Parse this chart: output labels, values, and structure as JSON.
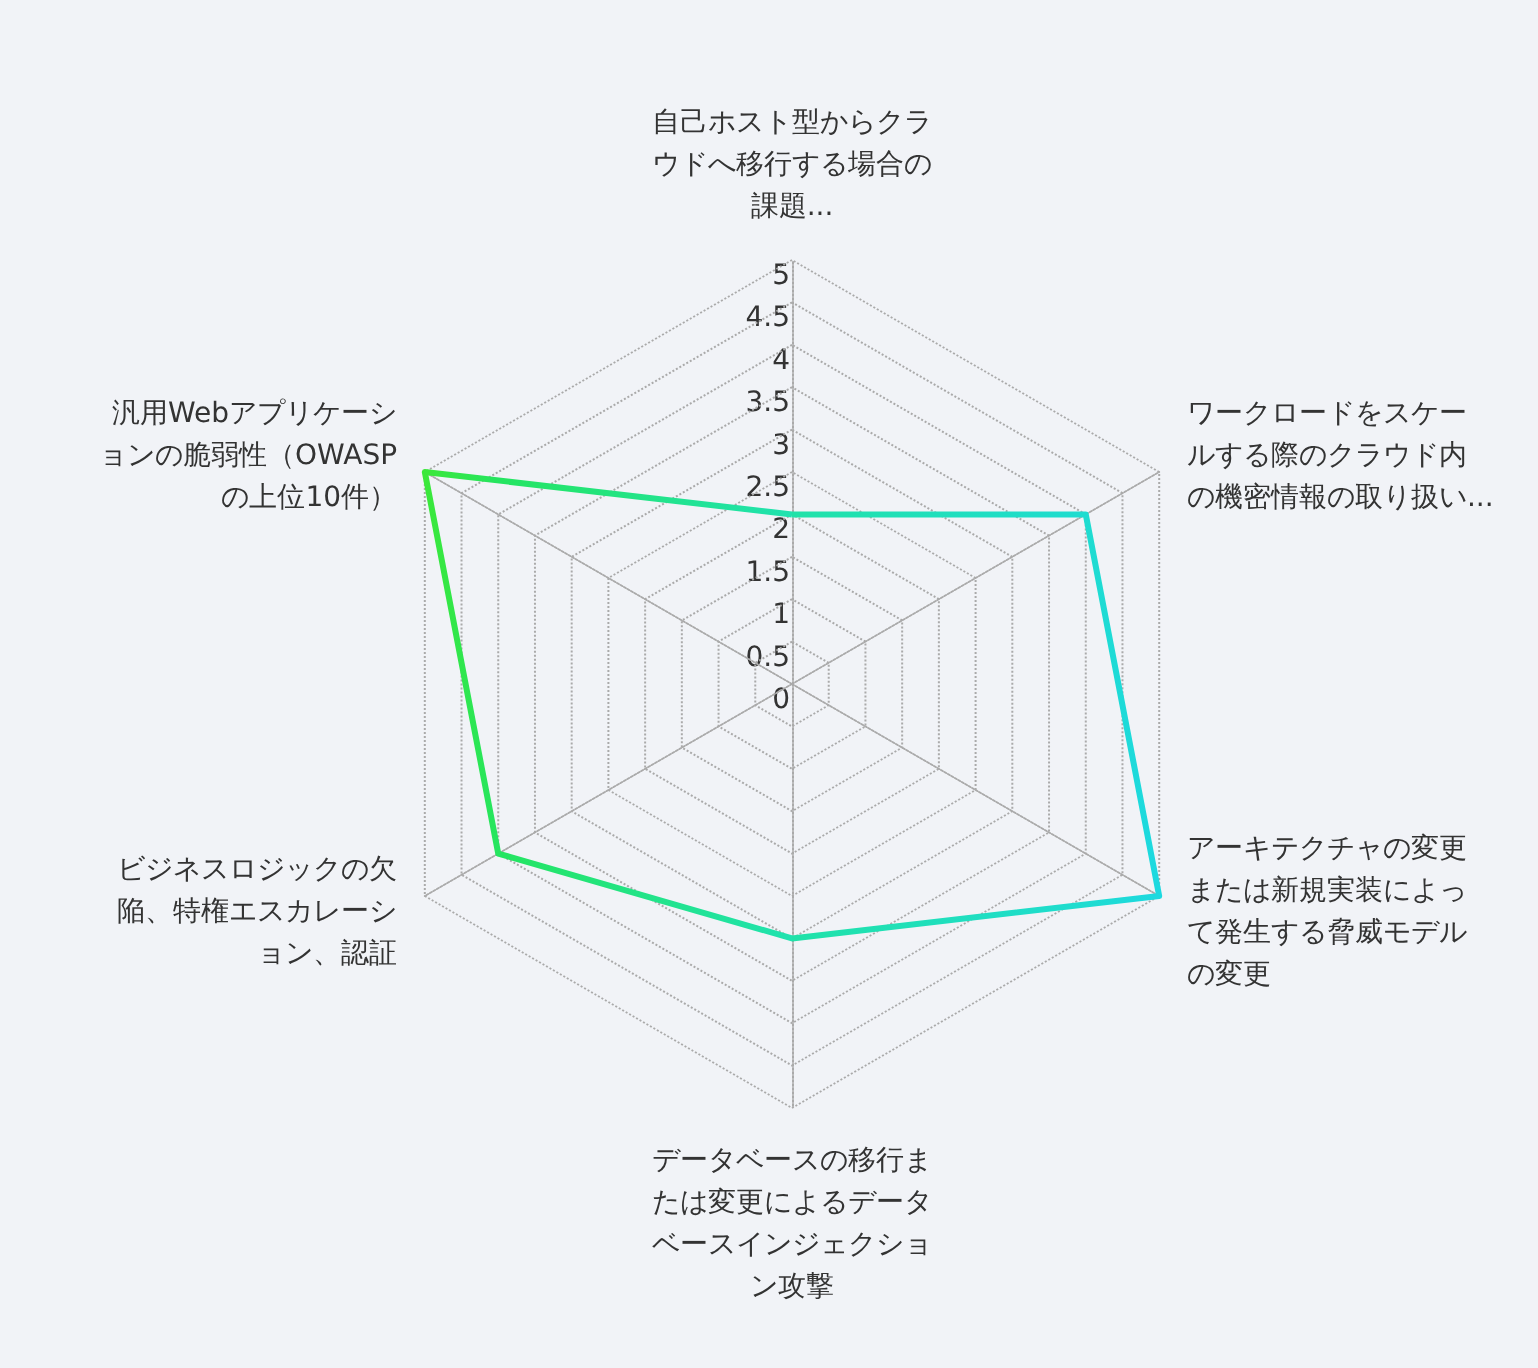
{
  "chart_data": {
    "type": "radar",
    "categories": [
      "自己ホスト型からクラウドへ移行する場合の課題...",
      "ワークロードをスケールする際のクラウド内の機密情報の取り扱い...",
      "アーキテクチャの変更または新規実装によって発生する脅威モデルの変更",
      "データベースの移行または変更によるデータベースインジェクション攻撃",
      "ビジネスロジックの欠陥、特権エスカレーション、認証",
      "汎用Webアプリケーションの脆弱性（OWASPの上位10件）"
    ],
    "series": [
      {
        "values": [
          2,
          4,
          5,
          3,
          4,
          5
        ],
        "colors": [
          "#20e2b0",
          "#1fdcd0",
          "#1dd9e0",
          "#20e2a8",
          "#25e560",
          "#3be83a"
        ]
      }
    ],
    "ylim": [
      0,
      5
    ],
    "yticks": [
      0,
      0.5,
      1,
      1.5,
      2,
      2.5,
      3,
      3.5,
      4,
      4.5,
      5
    ],
    "marker": "none"
  }
}
